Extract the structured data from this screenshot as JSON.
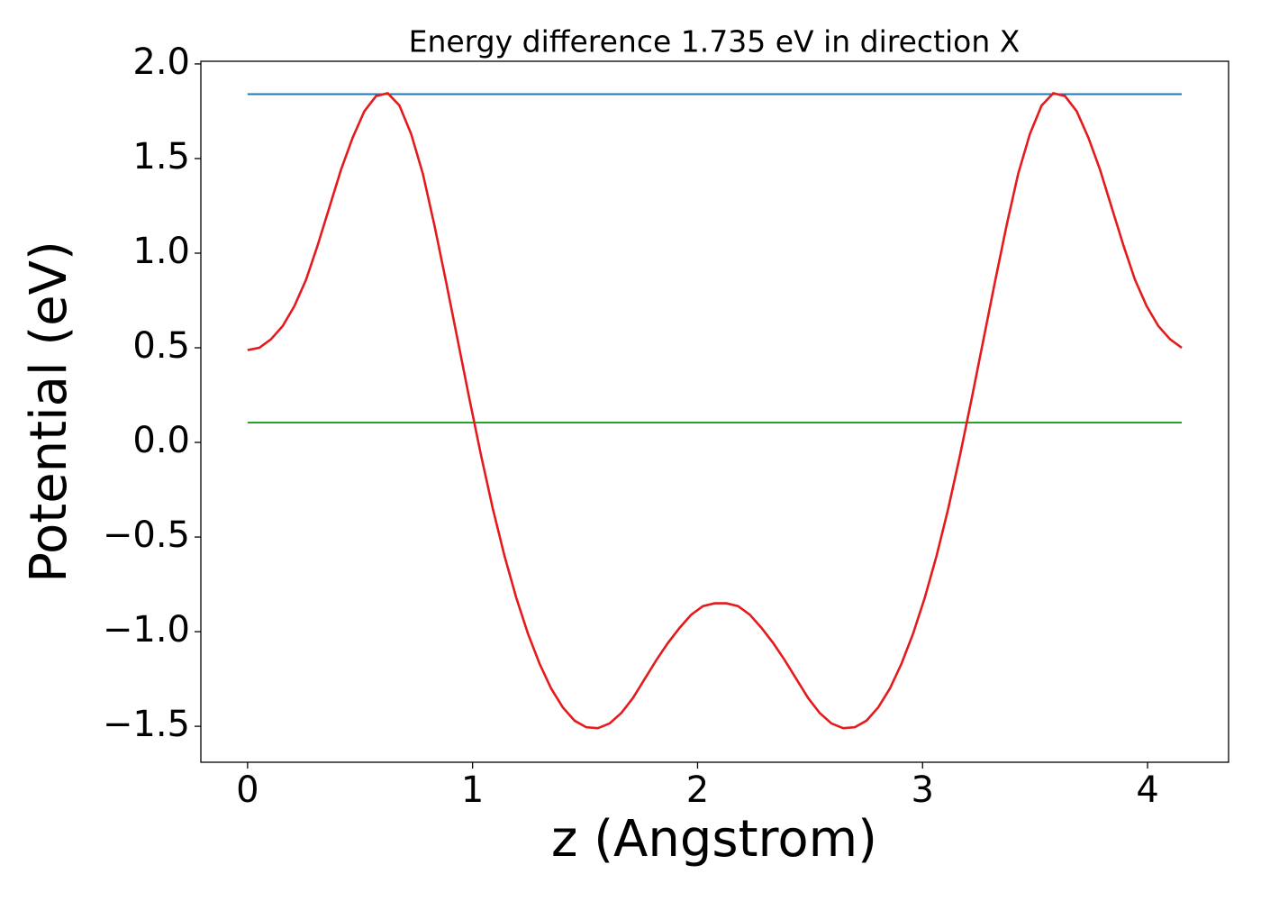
{
  "chart_data": {
    "type": "line",
    "title": "Energy difference 1.735 eV in direction X",
    "x_label": "z (Angstrom)",
    "y_label": "Potential (eV)",
    "xlim": [
      -0.2076,
      4.36
    ],
    "ylim": [
      -1.69,
      2.014
    ],
    "xticks": [
      0,
      1,
      2,
      3,
      4
    ],
    "yticks": [
      {
        "value": -1.5,
        "label": "−1.5"
      },
      {
        "value": -1.0,
        "label": "−1.0"
      },
      {
        "value": -0.5,
        "label": "−0.5"
      },
      {
        "value": 0.0,
        "label": "0.0"
      },
      {
        "value": 0.5,
        "label": "0.5"
      },
      {
        "value": 1.0,
        "label": "1.0"
      },
      {
        "value": 1.5,
        "label": "1.5"
      },
      {
        "value": 2.0,
        "label": "2.0"
      }
    ],
    "series": [
      {
        "color": "#1f77b4",
        "x": [
          0,
          4.152
        ],
        "values": [
          1.84,
          1.84
        ]
      },
      {
        "color": "#2ca02c",
        "x": [
          0,
          4.152
        ],
        "values": [
          0.105,
          0.105
        ]
      },
      {
        "color": "#e41a1c",
        "x": [
          0,
          0.052,
          0.104,
          0.156,
          0.208,
          0.26,
          0.311,
          0.363,
          0.415,
          0.467,
          0.519,
          0.571,
          0.623,
          0.675,
          0.727,
          0.779,
          0.83,
          0.882,
          0.934,
          0.986,
          1.038,
          1.09,
          1.142,
          1.194,
          1.246,
          1.298,
          1.349,
          1.401,
          1.453,
          1.505,
          1.557,
          1.609,
          1.661,
          1.713,
          1.765,
          1.817,
          1.868,
          1.92,
          1.972,
          2.024,
          2.076,
          2.128,
          2.18,
          2.232,
          2.284,
          2.336,
          2.387,
          2.439,
          2.491,
          2.543,
          2.595,
          2.647,
          2.699,
          2.751,
          2.803,
          2.855,
          2.906,
          2.958,
          3.01,
          3.062,
          3.114,
          3.166,
          3.218,
          3.27,
          3.322,
          3.374,
          3.425,
          3.477,
          3.529,
          3.581,
          3.633,
          3.685,
          3.737,
          3.789,
          3.841,
          3.893,
          3.944,
          3.996,
          4.048,
          4.1,
          4.152
        ],
        "values": [
          0.488,
          0.5,
          0.545,
          0.615,
          0.72,
          0.86,
          1.04,
          1.24,
          1.44,
          1.61,
          1.75,
          1.83,
          1.845,
          1.78,
          1.63,
          1.42,
          1.15,
          0.85,
          0.54,
          0.23,
          -0.07,
          -0.35,
          -0.6,
          -0.82,
          -1.01,
          -1.17,
          -1.3,
          -1.4,
          -1.47,
          -1.505,
          -1.51,
          -1.485,
          -1.43,
          -1.35,
          -1.25,
          -1.15,
          -1.06,
          -0.98,
          -0.91,
          -0.865,
          -0.85,
          -0.85,
          -0.865,
          -0.91,
          -0.98,
          -1.06,
          -1.15,
          -1.25,
          -1.35,
          -1.43,
          -1.485,
          -1.51,
          -1.505,
          -1.47,
          -1.4,
          -1.3,
          -1.17,
          -1.01,
          -0.82,
          -0.6,
          -0.35,
          -0.07,
          0.23,
          0.54,
          0.85,
          1.15,
          1.42,
          1.63,
          1.78,
          1.845,
          1.83,
          1.75,
          1.61,
          1.44,
          1.24,
          1.04,
          0.86,
          0.72,
          0.615,
          0.545,
          0.5
        ]
      }
    ],
    "grid": false
  }
}
